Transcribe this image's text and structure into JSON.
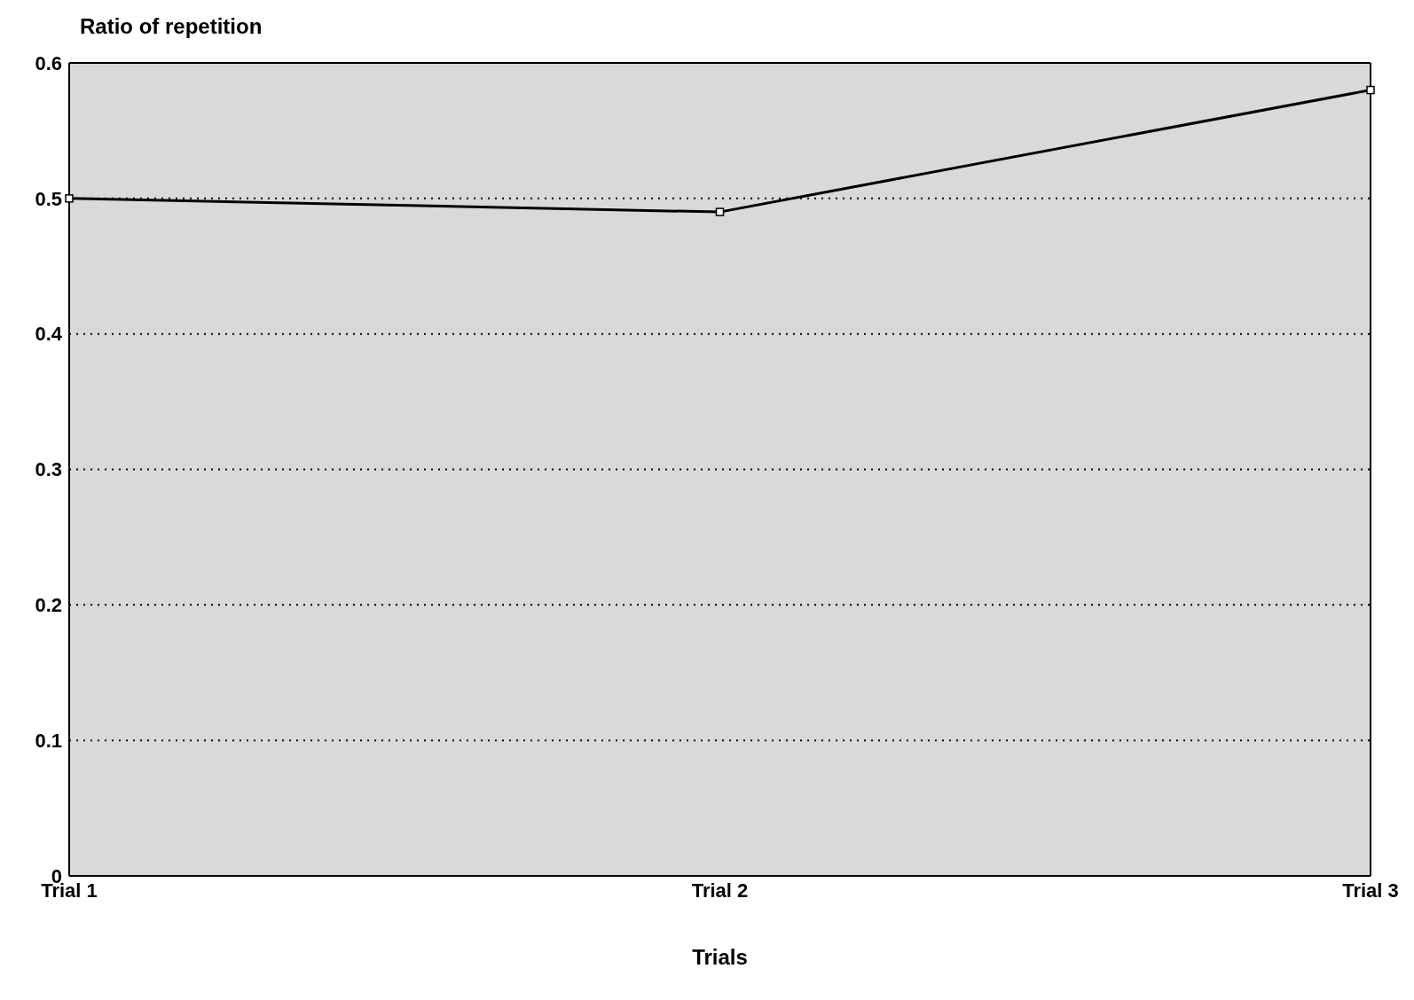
{
  "chart_data": {
    "type": "line",
    "xlabel": "Trials",
    "ylabel": "Ratio of repetition",
    "categories": [
      "Trial 1",
      "Trial 2",
      "Trial 3"
    ],
    "series": [
      {
        "color": "#000000",
        "values": [
          0.5,
          0.49,
          0.58
        ]
      }
    ],
    "ylim": [
      0,
      0.6
    ],
    "yticks": [
      0,
      0.1,
      0.2,
      0.3,
      0.4,
      0.5,
      0.6
    ],
    "grid": "y",
    "marker": "square",
    "line_style": "solid"
  }
}
